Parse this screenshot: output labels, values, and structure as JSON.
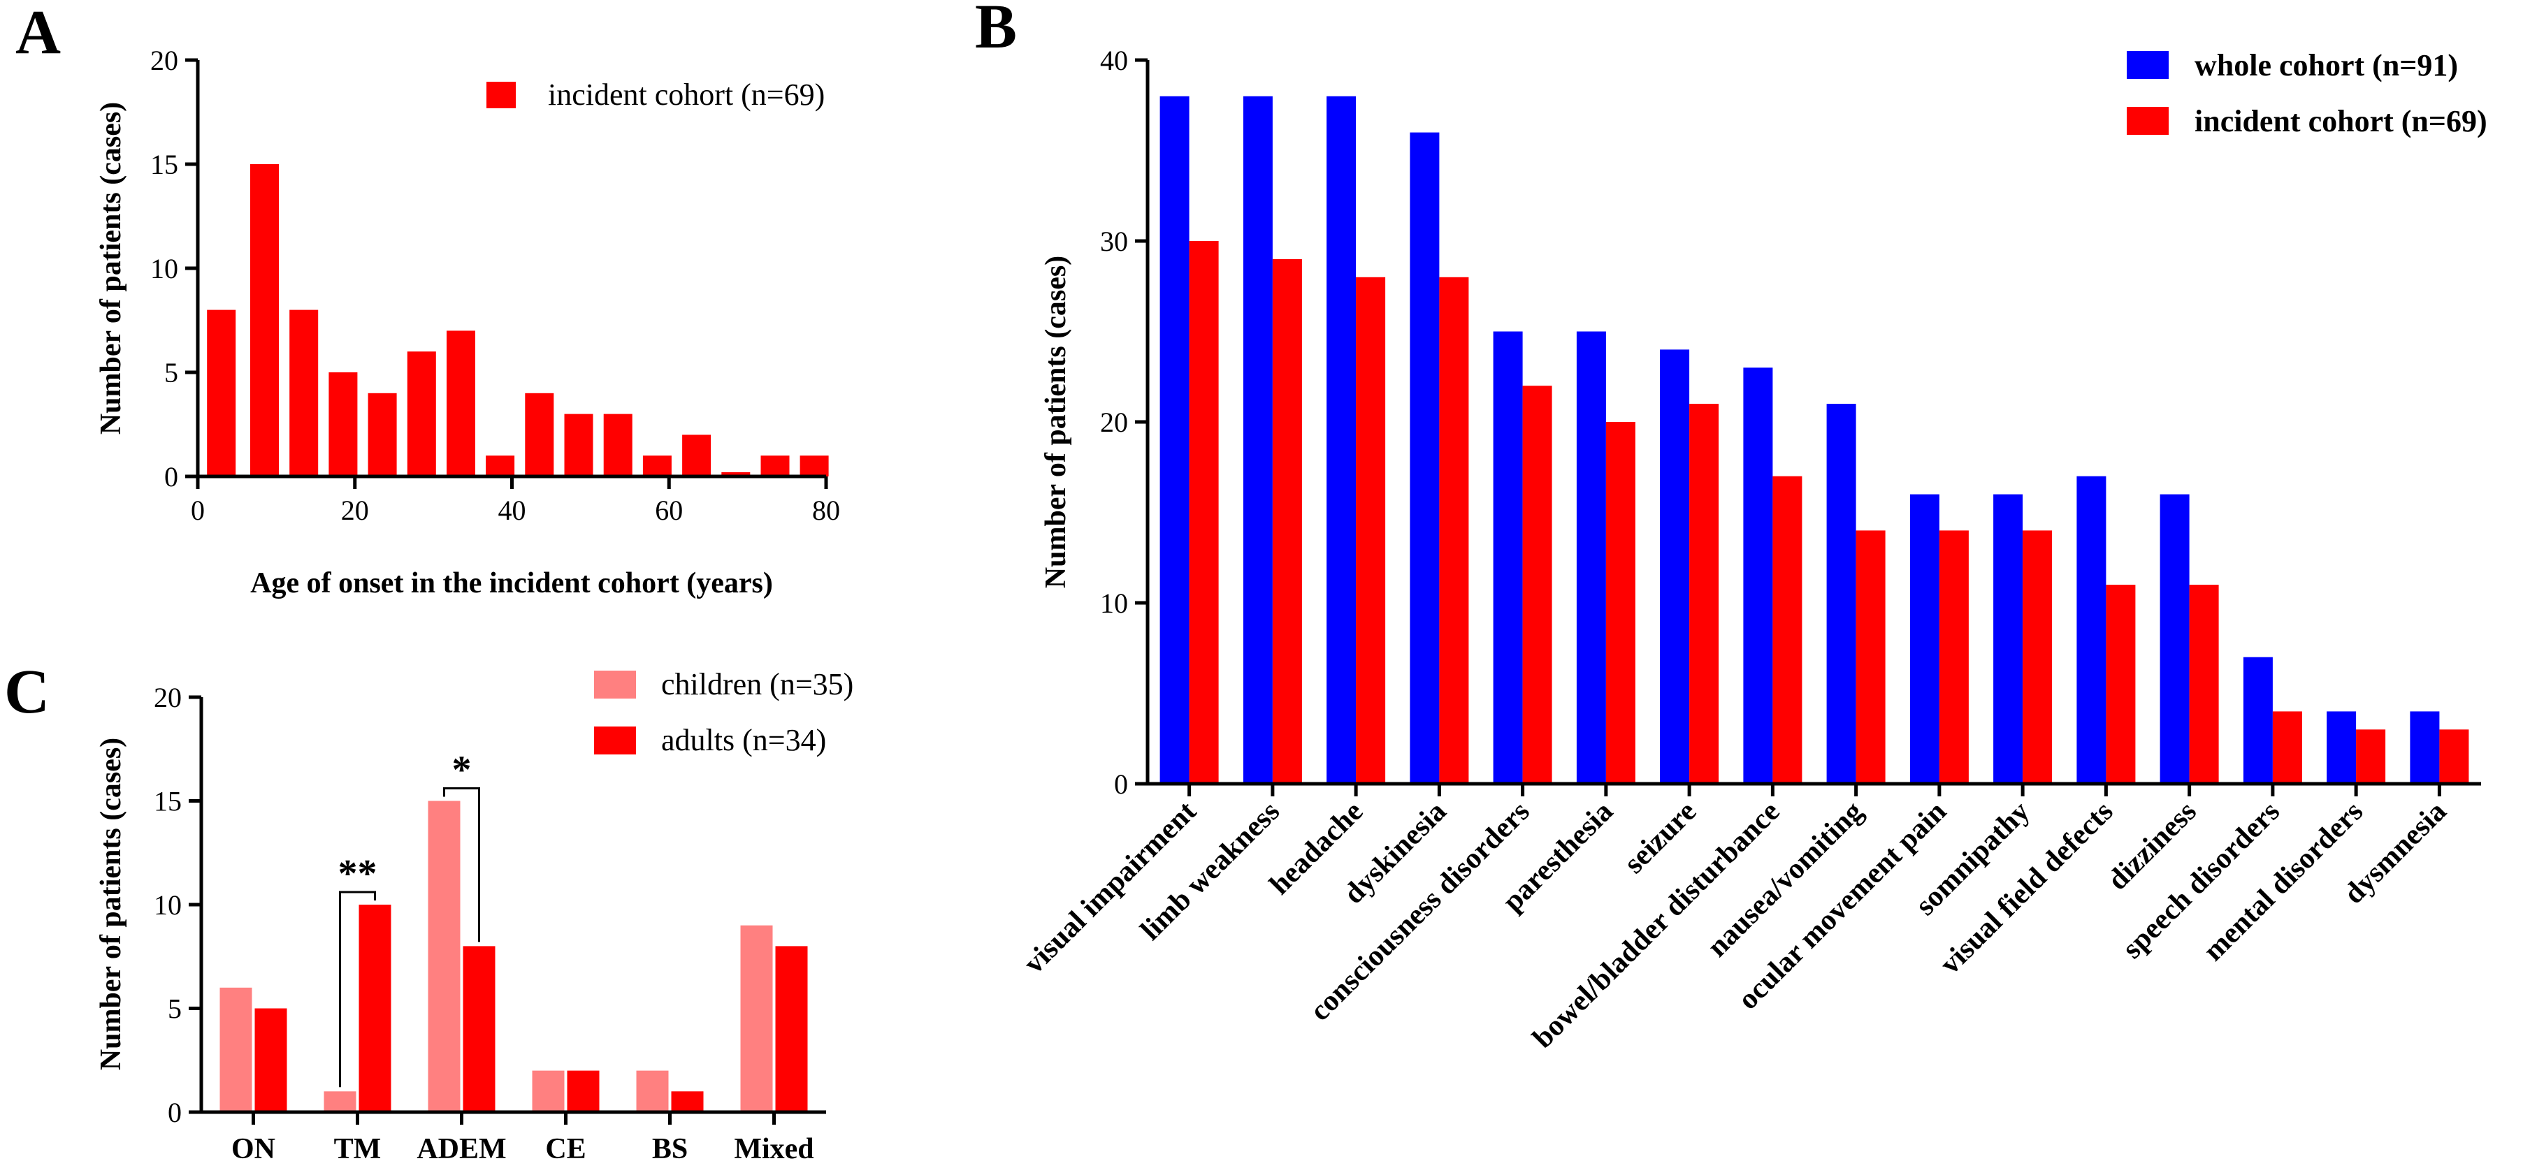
{
  "panel_labels": {
    "A": "A",
    "B": "B",
    "C": "C"
  },
  "colors": {
    "red": "#ff0000",
    "blue": "#0000ff",
    "pink": "#ff8080",
    "black": "#000000"
  },
  "chart_data": [
    {
      "id": "A",
      "type": "bar",
      "x": [
        3.0,
        8.5,
        13.5,
        18.5,
        23.5,
        28.5,
        33.5,
        38.5,
        43.5,
        48.5,
        53.5,
        58.5,
        63.5,
        68.5,
        73.5,
        78.5
      ],
      "values": [
        8,
        15,
        8,
        5,
        4,
        6,
        7,
        1,
        4,
        3,
        3,
        1,
        2,
        0.2,
        1,
        1
      ],
      "series_name": "incident cohort (n=69)",
      "title": "",
      "xlabel": "Age of onset in the incident cohort (years)",
      "ylabel": "Number of patients (cases)",
      "xlim": [
        0,
        80
      ],
      "ylim": [
        0,
        20
      ],
      "xticks": [
        "0",
        "20",
        "40",
        "60",
        "80"
      ],
      "yticks": [
        "0",
        "5",
        "10",
        "15",
        "20"
      ],
      "legend": "top-right",
      "grid": false
    },
    {
      "id": "B",
      "type": "bar",
      "categories": [
        "visual impairment",
        "limb weakness",
        "headache",
        "dyskinesia",
        "consciousness disorders",
        "paresthesia",
        "seizure",
        "bowel/bladder disturbance",
        "nausea/vomiting",
        "ocular movement pain",
        "somnipathy",
        "visual field defects",
        "dizziness",
        "speech disorders",
        "mental disorders",
        "dysmnesia"
      ],
      "series": [
        {
          "name": "whole cohort (n=91)",
          "values": [
            38,
            38,
            38,
            36,
            25,
            25,
            24,
            23,
            21,
            16,
            16,
            17,
            16,
            7,
            4,
            4
          ]
        },
        {
          "name": "incident cohort (n=69)",
          "values": [
            30,
            29,
            28,
            28,
            22,
            20,
            21,
            17,
            14,
            14,
            14,
            11,
            11,
            4,
            3,
            3
          ]
        }
      ],
      "title": "",
      "xlabel": "",
      "ylabel": "Number of patients (cases)",
      "ylim": [
        0,
        40
      ],
      "yticks": [
        "0",
        "10",
        "20",
        "30",
        "40"
      ],
      "legend": "top-right",
      "grid": false
    },
    {
      "id": "C",
      "type": "bar",
      "categories": [
        "ON",
        "TM",
        "ADEM",
        "CE",
        "BS",
        "Mixed"
      ],
      "series": [
        {
          "name": "children (n=35)",
          "values": [
            6,
            1,
            15,
            2,
            2,
            9
          ]
        },
        {
          "name": "adults (n=34)",
          "values": [
            5,
            10,
            8,
            2,
            1,
            8
          ]
        }
      ],
      "annotations": [
        {
          "category": "TM",
          "label": "**"
        },
        {
          "category": "ADEM",
          "label": "*"
        }
      ],
      "title": "",
      "xlabel": "",
      "ylabel": "Number of patients (cases)",
      "ylim": [
        0,
        20
      ],
      "yticks": [
        "0",
        "5",
        "10",
        "15",
        "20"
      ],
      "legend": "top-right",
      "grid": false
    }
  ]
}
